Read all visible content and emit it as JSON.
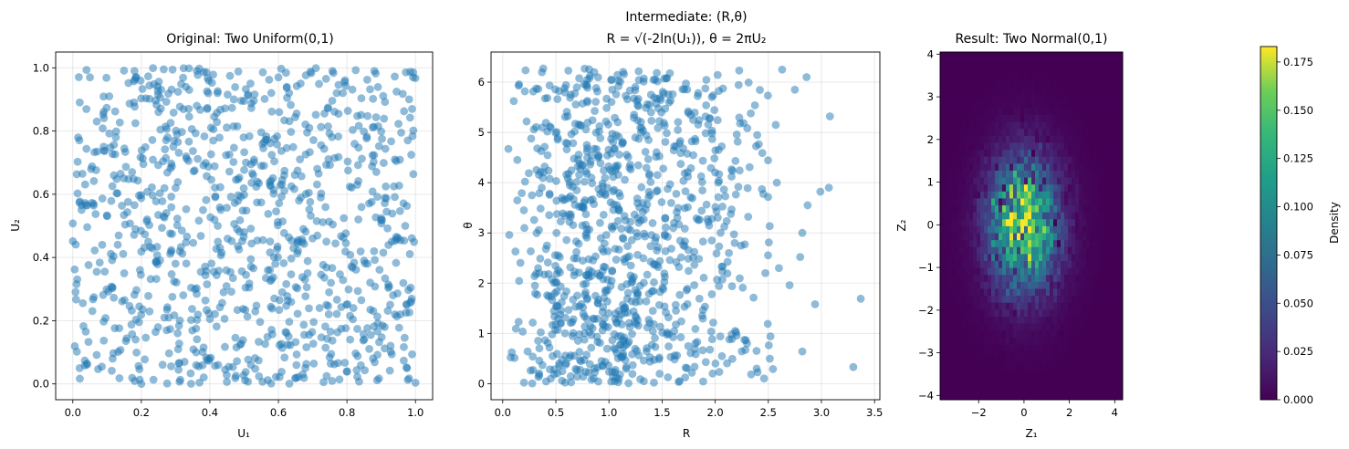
{
  "chart_data": [
    {
      "type": "scatter",
      "title": "Original: Two Uniform(0,1)",
      "xlabel": "U₁",
      "ylabel": "U₂",
      "xlim": [
        -0.05,
        1.05
      ],
      "ylim": [
        -0.05,
        1.05
      ],
      "xticks": [
        0.0,
        0.2,
        0.4,
        0.6,
        0.8,
        1.0
      ],
      "yticks": [
        0.0,
        0.2,
        0.4,
        0.6,
        0.8,
        1.0
      ],
      "xtick_labels": [
        "0.0",
        "0.2",
        "0.4",
        "0.6",
        "0.8",
        "1.0"
      ],
      "ytick_labels": [
        "0.0",
        "0.2",
        "0.4",
        "0.6",
        "0.8",
        "1.0"
      ],
      "grid": true,
      "marker_color": "#1f77b4",
      "marker_alpha": 0.5,
      "point_count": 1000,
      "points": [
        [
          0.02,
          0.05
        ],
        [
          0.05,
          0.97
        ],
        [
          0.07,
          0.83
        ],
        [
          0.12,
          0.66
        ],
        [
          0.15,
          0.35
        ],
        [
          0.18,
          0.99
        ],
        [
          0.2,
          0.0
        ],
        [
          0.22,
          0.45
        ],
        [
          0.25,
          0.86
        ],
        [
          0.28,
          0.21
        ],
        [
          0.3,
          0.62
        ],
        [
          0.33,
          0.94
        ],
        [
          0.36,
          0.1
        ],
        [
          0.38,
          0.55
        ],
        [
          0.41,
          0.77
        ],
        [
          0.44,
          0.29
        ],
        [
          0.47,
          0.9
        ],
        [
          0.5,
          0.48
        ],
        [
          0.52,
          0.06
        ],
        [
          0.55,
          0.69
        ],
        [
          0.58,
          0.33
        ],
        [
          0.6,
          0.97
        ],
        [
          0.63,
          0.15
        ],
        [
          0.66,
          0.58
        ],
        [
          0.69,
          0.81
        ],
        [
          0.72,
          0.24
        ],
        [
          0.74,
          0.45
        ],
        [
          0.77,
          0.92
        ],
        [
          0.8,
          0.04
        ],
        [
          0.83,
          0.63
        ],
        [
          0.86,
          0.38
        ],
        [
          0.88,
          0.99
        ],
        [
          0.91,
          0.18
        ],
        [
          0.94,
          0.71
        ],
        [
          0.97,
          0.5
        ],
        [
          0.99,
          0.87
        ]
      ]
    },
    {
      "type": "scatter",
      "title": "Intermediate: (R,θ)",
      "subtitle": "R = √(-2ln(U₁)), θ = 2πU₂",
      "xlabel": "R",
      "ylabel": "θ",
      "xlim": [
        -0.11,
        3.55
      ],
      "ylim": [
        -0.32,
        6.6
      ],
      "xticks": [
        0.0,
        0.5,
        1.0,
        1.5,
        2.0,
        2.5,
        3.0,
        3.5
      ],
      "yticks": [
        0,
        1,
        2,
        3,
        4,
        5,
        6
      ],
      "xtick_labels": [
        "0.0",
        "0.5",
        "1.0",
        "1.5",
        "2.0",
        "2.5",
        "3.0",
        "3.5"
      ],
      "ytick_labels": [
        "0",
        "1",
        "2",
        "3",
        "4",
        "5",
        "6"
      ],
      "grid": true,
      "marker_color": "#1f77b4",
      "marker_alpha": 0.5,
      "point_count": 1000,
      "points": [
        [
          3.37,
          1.69
        ],
        [
          3.3,
          0.33
        ],
        [
          3.08,
          5.32
        ],
        [
          3.07,
          3.9
        ],
        [
          2.99,
          3.82
        ],
        [
          2.94,
          1.58
        ],
        [
          2.87,
          3.55
        ],
        [
          2.86,
          6.1
        ],
        [
          2.82,
          3.0
        ],
        [
          2.8,
          2.52
        ],
        [
          2.82,
          0.64
        ],
        [
          2.75,
          5.85
        ],
        [
          2.7,
          1.96
        ],
        [
          2.63,
          6.25
        ],
        [
          2.57,
          5.15
        ],
        [
          2.52,
          0.94
        ],
        [
          2.6,
          2.3
        ],
        [
          2.58,
          4.0
        ],
        [
          0.2,
          0.02
        ],
        [
          0.15,
          5.93
        ],
        [
          0.12,
          2.63
        ]
      ]
    },
    {
      "type": "heatmap",
      "title": "Result: Two Normal(0,1)",
      "xlabel": "Z₁",
      "ylabel": "Z₂",
      "xlim": [
        -3.7,
        4.35
      ],
      "ylim": [
        -4.1,
        4.05
      ],
      "xticks": [
        -2,
        0,
        2,
        4
      ],
      "yticks": [
        -4,
        -3,
        -2,
        -1,
        0,
        1,
        2,
        3,
        4
      ],
      "xtick_labels": [
        "−2",
        "0",
        "2",
        "4"
      ],
      "ytick_labels": [
        "−4",
        "−3",
        "−2",
        "−1",
        "0",
        "1",
        "2",
        "3",
        "4"
      ],
      "bins": 50,
      "density_peak": 0.183,
      "center": [
        0.0,
        0.0
      ],
      "sigma": 1.0,
      "colormap": "viridis",
      "colorbar": {
        "label": "Density",
        "min": 0.0,
        "max": 0.183,
        "ticks": [
          0.0,
          0.025,
          0.05,
          0.075,
          0.1,
          0.125,
          0.15,
          0.175
        ],
        "tick_labels": [
          "0.000",
          "0.025",
          "0.050",
          "0.075",
          "0.100",
          "0.125",
          "0.150",
          "0.175"
        ]
      }
    }
  ]
}
